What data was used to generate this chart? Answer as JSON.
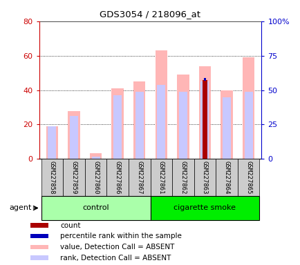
{
  "title": "GDS3054 / 218096_at",
  "samples": [
    "GSM227858",
    "GSM227859",
    "GSM227860",
    "GSM227866",
    "GSM227867",
    "GSM227861",
    "GSM227862",
    "GSM227863",
    "GSM227864",
    "GSM227865"
  ],
  "groups": [
    {
      "label": "control",
      "start": 0,
      "end": 5,
      "color": "#aaffaa"
    },
    {
      "label": "cigarette smoke",
      "start": 5,
      "end": 10,
      "color": "#00ee00"
    }
  ],
  "value_bars": [
    19,
    28,
    3.5,
    41,
    45,
    63,
    49,
    54,
    40,
    59
  ],
  "rank_bars": [
    19,
    25,
    1.5,
    37,
    39,
    43,
    39,
    45,
    36,
    39
  ],
  "count_bar_idx": 7,
  "count_bar_val": 46,
  "percentile_bar_idx": 7,
  "percentile_bar_val": 46,
  "value_color": "#ffb6b6",
  "rank_color": "#c8c8ff",
  "count_color": "#aa0000",
  "percentile_color": "#0000bb",
  "ylim_left": [
    0,
    80
  ],
  "ylim_right": [
    0,
    100
  ],
  "yticks_left": [
    0,
    20,
    40,
    60,
    80
  ],
  "ytick_labels_left": [
    "0",
    "20",
    "40",
    "60",
    "80"
  ],
  "yticks_right": [
    0,
    25,
    50,
    75,
    100
  ],
  "ytick_labels_right": [
    "0",
    "25",
    "50",
    "75",
    "100%"
  ],
  "bg_color": "#ffffff",
  "axis_color_left": "#cc0000",
  "axis_color_right": "#0000cc",
  "sample_box_color": "#cccccc",
  "legend_items": [
    {
      "color": "#aa0000",
      "label": "count"
    },
    {
      "color": "#0000bb",
      "label": "percentile rank within the sample"
    },
    {
      "color": "#ffb6b6",
      "label": "value, Detection Call = ABSENT"
    },
    {
      "color": "#c8c8ff",
      "label": "rank, Detection Call = ABSENT"
    }
  ]
}
